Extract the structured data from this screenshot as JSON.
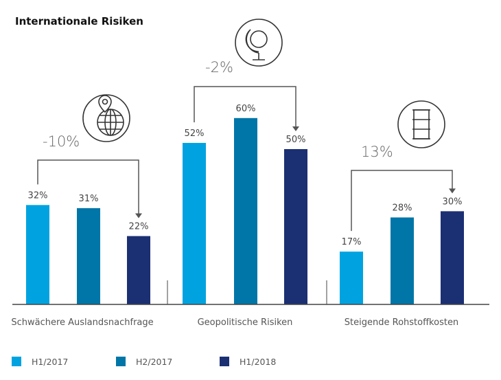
{
  "chart_data": {
    "type": "bar",
    "title": "Internationale Risiken",
    "xlabel": "",
    "ylabel": "",
    "ylim": [
      0,
      60
    ],
    "grid": false,
    "legend_position": "bottom-left",
    "categories": [
      "Schwächere Auslandsnachfrage",
      "Geopolitische Risiken",
      "Steigende Rohstoffkosten"
    ],
    "series": [
      {
        "name": "H1/2017",
        "color": "#00a3e0",
        "values": [
          32,
          52,
          17
        ],
        "labels": [
          "32%",
          "52%",
          "17%"
        ]
      },
      {
        "name": "H2/2017",
        "color": "#0076a8",
        "values": [
          31,
          60,
          28
        ],
        "labels": [
          "31%",
          "60%",
          "28%"
        ]
      },
      {
        "name": "H1/2018",
        "color": "#1b2f73",
        "values": [
          22,
          50,
          30
        ],
        "labels": [
          "22%",
          "50%",
          "30%"
        ]
      }
    ],
    "annotations": [
      {
        "category": "Schwächere Auslandsnachfrage",
        "from": "H1/2017",
        "to": "H1/2018",
        "change": "-10%",
        "icon": "globe-location-icon"
      },
      {
        "category": "Geopolitische Risiken",
        "from": "H1/2017",
        "to": "H1/2018",
        "change": "-2%",
        "icon": "desk-globe-icon"
      },
      {
        "category": "Steigende Rohstoffkosten",
        "from": "H1/2017",
        "to": "H1/2018",
        "change": "13%",
        "icon": "oil-barrel-icon"
      }
    ]
  }
}
